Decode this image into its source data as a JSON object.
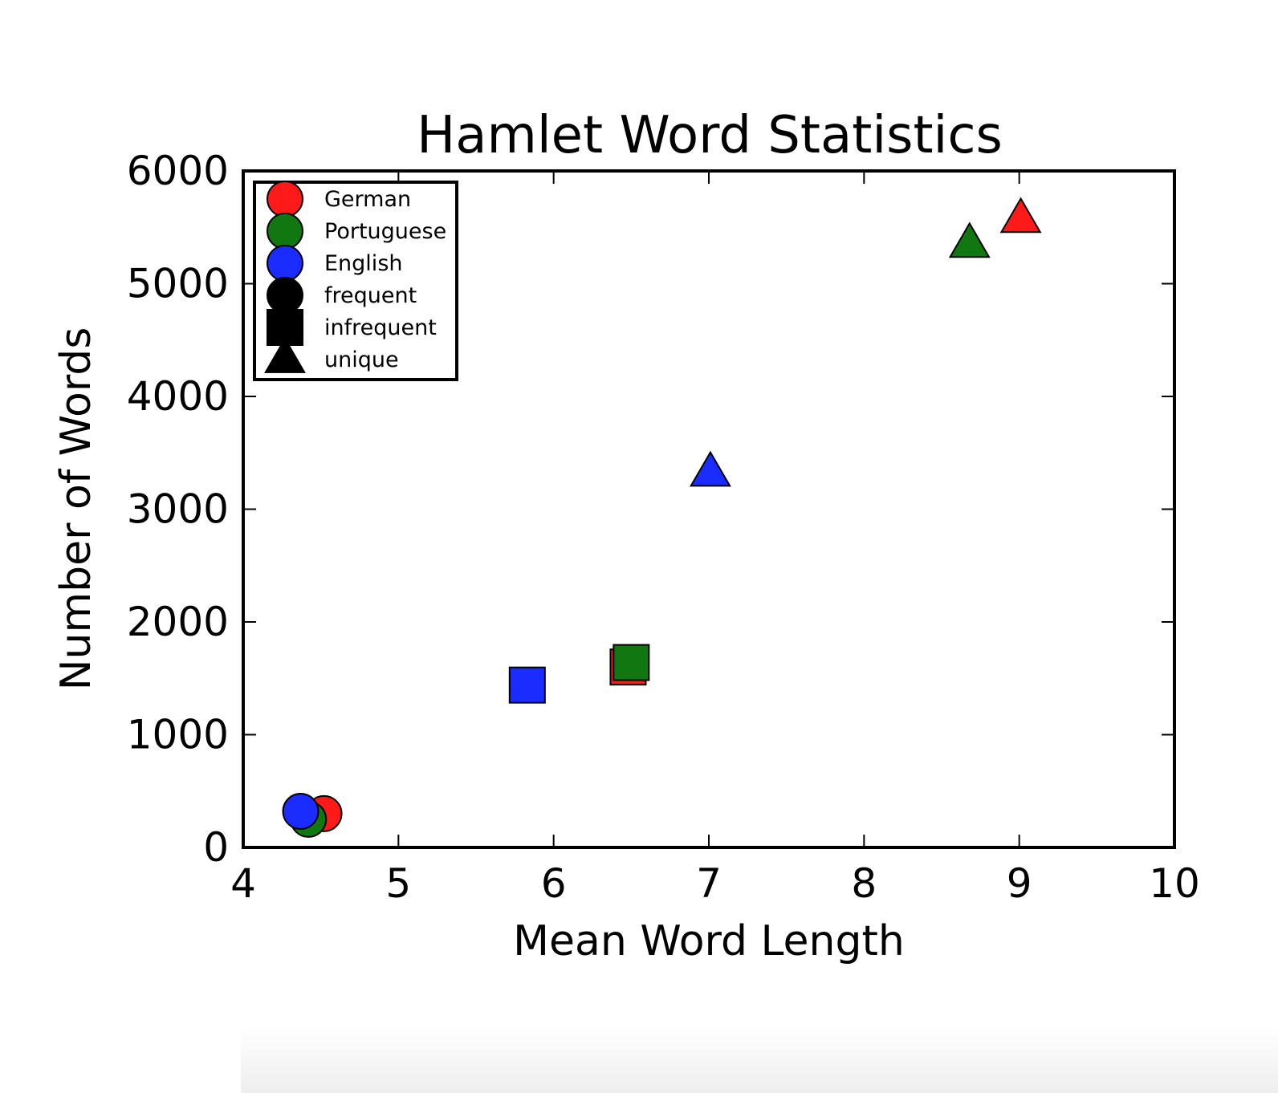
{
  "chart_data": {
    "type": "scatter",
    "title": "Hamlet Word Statistics",
    "xlabel": "Mean Word Length",
    "ylabel": "Number of Words",
    "xlim": [
      4,
      10
    ],
    "ylim": [
      0,
      6000
    ],
    "xticks": [
      "4",
      "5",
      "6",
      "7",
      "8",
      "9",
      "10"
    ],
    "yticks": [
      "0",
      "1000",
      "2000",
      "3000",
      "4000",
      "5000",
      "6000"
    ],
    "legend_position": "top-left",
    "grid": false,
    "languages": [
      {
        "name": "German",
        "color": "#ff1a1a"
      },
      {
        "name": "Portuguese",
        "color": "#117711"
      },
      {
        "name": "English",
        "color": "#1a2cff"
      }
    ],
    "categories": [
      {
        "name": "frequent",
        "marker": "circle"
      },
      {
        "name": "infrequent",
        "marker": "square"
      },
      {
        "name": "unique",
        "marker": "triangle"
      }
    ],
    "points": [
      {
        "language": "German",
        "category": "frequent",
        "x": 4.52,
        "y": 300
      },
      {
        "language": "Portuguese",
        "category": "frequent",
        "x": 4.42,
        "y": 250
      },
      {
        "language": "English",
        "category": "frequent",
        "x": 4.37,
        "y": 320
      },
      {
        "language": "German",
        "category": "infrequent",
        "x": 6.48,
        "y": 1600
      },
      {
        "language": "Portuguese",
        "category": "infrequent",
        "x": 6.5,
        "y": 1640
      },
      {
        "language": "English",
        "category": "infrequent",
        "x": 5.83,
        "y": 1440
      },
      {
        "language": "German",
        "category": "unique",
        "x": 9.01,
        "y": 5570
      },
      {
        "language": "Portuguese",
        "category": "unique",
        "x": 8.68,
        "y": 5350
      },
      {
        "language": "English",
        "category": "unique",
        "x": 7.01,
        "y": 3320
      }
    ]
  }
}
